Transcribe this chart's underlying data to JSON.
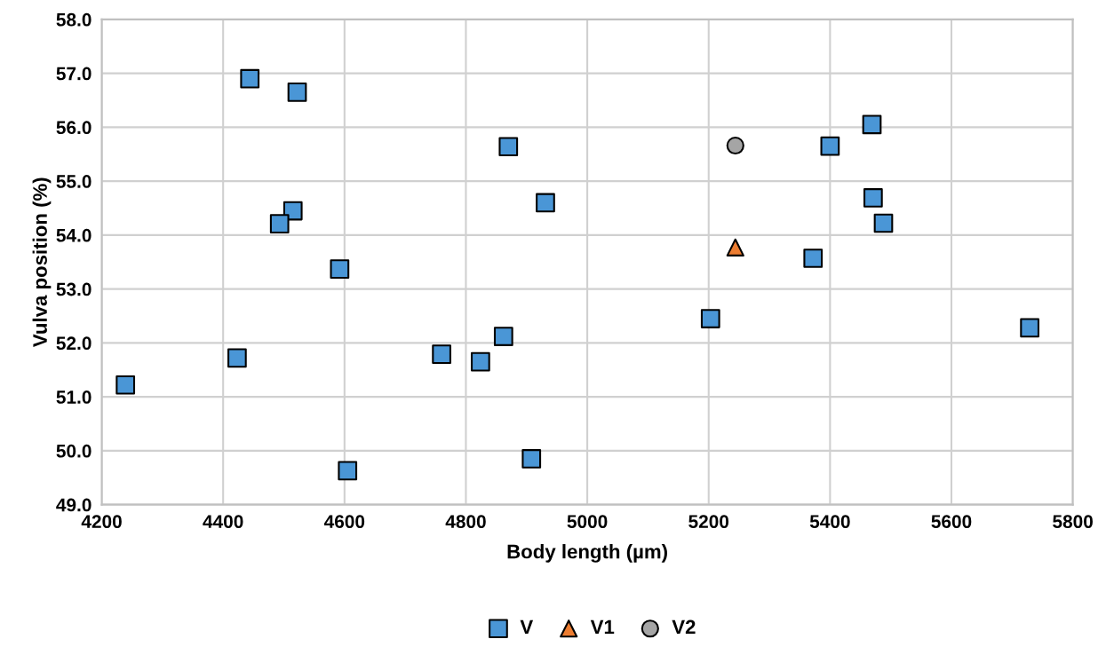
{
  "chart_data": {
    "type": "scatter",
    "xlabel": "Body length (µm)",
    "ylabel": "Vulva position (%)",
    "xlim": [
      4200,
      5800
    ],
    "xticks": [
      4200,
      4400,
      4600,
      4800,
      5000,
      5200,
      5400,
      5600,
      5800
    ],
    "ylim": [
      49.0,
      58.0
    ],
    "yticks": [
      {
        "value": 49,
        "label": "49.0"
      },
      {
        "value": 50,
        "label": "50.0"
      },
      {
        "value": 51,
        "label": "51.0"
      },
      {
        "value": 52,
        "label": "52.0"
      },
      {
        "value": 53,
        "label": "53.0"
      },
      {
        "value": 54,
        "label": "54.0"
      },
      {
        "value": 55,
        "label": "55.0"
      },
      {
        "value": 56,
        "label": "56.0"
      },
      {
        "value": 57,
        "label": "57.0"
      },
      {
        "value": 58,
        "label": "58.0"
      }
    ],
    "grid": true,
    "legend": "bottom",
    "series": [
      {
        "name": "V",
        "color": "#4a96d6",
        "marker": "square",
        "x": [
          4444,
          4522,
          4870,
          4931,
          4515,
          4493,
          4592,
          4239,
          4423,
          4605,
          4760,
          4824,
          4862,
          4908,
          5400,
          5469,
          5471,
          5488,
          5372,
          5203,
          5729
        ],
        "values": [
          56.9,
          56.65,
          55.64,
          54.6,
          54.45,
          54.21,
          53.37,
          51.22,
          51.72,
          49.63,
          51.79,
          51.65,
          52.12,
          49.85,
          55.65,
          56.05,
          54.69,
          54.22,
          53.57,
          52.45,
          52.28
        ]
      },
      {
        "name": "V1",
        "color": "#ed7d31",
        "marker": "triangle",
        "x": [
          5244
        ],
        "values": [
          53.77
        ]
      },
      {
        "name": "V2",
        "color": "#a5a5a5",
        "marker": "circle",
        "x": [
          5244
        ],
        "values": [
          55.66
        ]
      }
    ]
  }
}
